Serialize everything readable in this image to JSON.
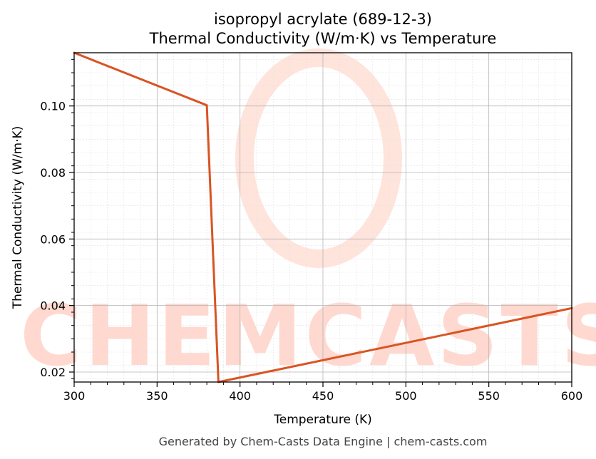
{
  "chart_data": {
    "type": "line",
    "title": "isopropyl acrylate (689-12-3)",
    "subtitle": "Thermal Conductivity (W/m·K) vs Temperature",
    "xlabel": "Temperature (K)",
    "ylabel": "Thermal Conductivity (W/m·K)",
    "xlim": [
      300,
      600
    ],
    "ylim": [
      0.017,
      0.116
    ],
    "xticks": [
      300,
      350,
      400,
      450,
      500,
      550,
      600
    ],
    "yticks": [
      0.02,
      0.04,
      0.06,
      0.08,
      0.1
    ],
    "ytick_labels": [
      "0.02",
      "0.04",
      "0.06",
      "0.08",
      "0.10"
    ],
    "grid": true,
    "series": [
      {
        "color": "#d95423",
        "x": [
          300,
          380,
          387,
          600
        ],
        "y": [
          0.116,
          0.1002,
          0.017,
          0.0392
        ]
      }
    ]
  },
  "watermark": {
    "text": "CHEMCASTS",
    "color": "#ffd9d0"
  },
  "footer": "Generated by Chem-Casts Data Engine | chem-casts.com"
}
